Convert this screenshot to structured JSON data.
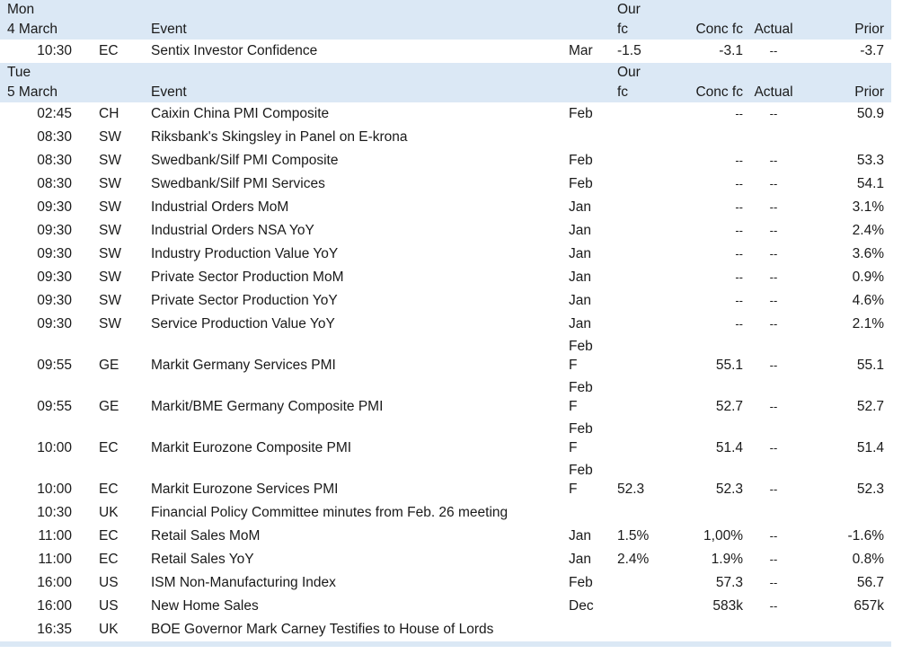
{
  "days": [
    {
      "weekday": "Mon",
      "date": "4 March",
      "headers": {
        "event": "Event",
        "our_fc_1": "Our",
        "our_fc_2": "fc",
        "conc_fc": "Conc fc",
        "actual": "Actual",
        "prior": "Prior"
      },
      "rows": [
        {
          "time": "10:30",
          "country": "EC",
          "event": "Sentix Investor Confidence",
          "period": "Mar",
          "period2": "",
          "our_fc": "-1.5",
          "conc_fc": "-3.1",
          "actual": "--",
          "prior": "-3.7"
        }
      ]
    },
    {
      "weekday": "Tue",
      "date": "5 March",
      "headers": {
        "event": "Event",
        "our_fc_1": "Our",
        "our_fc_2": "fc",
        "conc_fc": "Conc fc",
        "actual": "Actual",
        "prior": "Prior"
      },
      "rows": [
        {
          "time": "02:45",
          "country": "CH",
          "event": "Caixin China PMI Composite",
          "period": "Feb",
          "period2": "",
          "our_fc": "",
          "conc_fc": "--",
          "actual": "--",
          "prior": "50.9"
        },
        {
          "time": "08:30",
          "country": "SW",
          "event": "Riksbank's Skingsley in Panel on E-krona",
          "period": "",
          "period2": "",
          "our_fc": "",
          "conc_fc": "",
          "actual": "",
          "prior": ""
        },
        {
          "time": "08:30",
          "country": "SW",
          "event": "Swedbank/Silf PMI Composite",
          "period": "Feb",
          "period2": "",
          "our_fc": "",
          "conc_fc": "--",
          "actual": "--",
          "prior": "53.3"
        },
        {
          "time": "08:30",
          "country": "SW",
          "event": "Swedbank/Silf PMI Services",
          "period": "Feb",
          "period2": "",
          "our_fc": "",
          "conc_fc": "--",
          "actual": "--",
          "prior": "54.1"
        },
        {
          "time": "09:30",
          "country": "SW",
          "event": "Industrial Orders MoM",
          "period": "Jan",
          "period2": "",
          "our_fc": "",
          "conc_fc": "--",
          "actual": "--",
          "prior": "3.1%"
        },
        {
          "time": "09:30",
          "country": "SW",
          "event": "Industrial Orders NSA YoY",
          "period": "Jan",
          "period2": "",
          "our_fc": "",
          "conc_fc": "--",
          "actual": "--",
          "prior": "2.4%"
        },
        {
          "time": "09:30",
          "country": "SW",
          "event": "Industry Production Value YoY",
          "period": "Jan",
          "period2": "",
          "our_fc": "",
          "conc_fc": "--",
          "actual": "--",
          "prior": "3.6%"
        },
        {
          "time": "09:30",
          "country": "SW",
          "event": "Private Sector Production MoM",
          "period": "Jan",
          "period2": "",
          "our_fc": "",
          "conc_fc": "--",
          "actual": "--",
          "prior": "0.9%"
        },
        {
          "time": "09:30",
          "country": "SW",
          "event": "Private Sector Production YoY",
          "period": "Jan",
          "period2": "",
          "our_fc": "",
          "conc_fc": "--",
          "actual": "--",
          "prior": "4.6%"
        },
        {
          "time": "09:30",
          "country": "SW",
          "event": "Service Production Value YoY",
          "period": "Jan",
          "period2": "",
          "our_fc": "",
          "conc_fc": "--",
          "actual": "--",
          "prior": "2.1%"
        },
        {
          "time": "09:55",
          "country": "GE",
          "event": "Markit Germany Services PMI",
          "period": "Feb",
          "period2": "F",
          "our_fc": "",
          "conc_fc": "55.1",
          "actual": "--",
          "prior": "55.1"
        },
        {
          "time": "09:55",
          "country": "GE",
          "event": "Markit/BME Germany Composite PMI",
          "period": "Feb",
          "period2": "F",
          "our_fc": "",
          "conc_fc": "52.7",
          "actual": "--",
          "prior": "52.7"
        },
        {
          "time": "10:00",
          "country": "EC",
          "event": "Markit Eurozone Composite PMI",
          "period": "Feb",
          "period2": "F",
          "our_fc": "",
          "conc_fc": "51.4",
          "actual": "--",
          "prior": "51.4"
        },
        {
          "time": "10:00",
          "country": "EC",
          "event": "Markit Eurozone Services PMI",
          "period": "Feb",
          "period2": "F",
          "our_fc": "52.3",
          "conc_fc": "52.3",
          "actual": "--",
          "prior": "52.3"
        },
        {
          "time": "10:30",
          "country": "UK",
          "event": "Financial Policy Committee minutes from Feb. 26 meeting",
          "period": "",
          "period2": "",
          "our_fc": "",
          "conc_fc": "",
          "actual": "",
          "prior": ""
        },
        {
          "time": "11:00",
          "country": "EC",
          "event": "Retail Sales MoM",
          "period": "Jan",
          "period2": "",
          "our_fc": "1.5%",
          "conc_fc": "1,00%",
          "actual": "--",
          "prior": "-1.6%"
        },
        {
          "time": "11:00",
          "country": "EC",
          "event": "Retail Sales YoY",
          "period": "Jan",
          "period2": "",
          "our_fc": "2.4%",
          "conc_fc": "1.9%",
          "actual": "--",
          "prior": "0.8%"
        },
        {
          "time": "16:00",
          "country": "US",
          "event": "ISM Non-Manufacturing Index",
          "period": "Feb",
          "period2": "",
          "our_fc": "",
          "conc_fc": "57.3",
          "actual": "--",
          "prior": "56.7"
        },
        {
          "time": "16:00",
          "country": "US",
          "event": "New Home Sales",
          "period": "Dec",
          "period2": "",
          "our_fc": "",
          "conc_fc": "583k",
          "actual": "--",
          "prior": "657k"
        },
        {
          "time": "16:35",
          "country": "UK",
          "event": "BOE Governor Mark Carney Testifies to House of Lords",
          "period": "",
          "period2": "",
          "our_fc": "",
          "conc_fc": "",
          "actual": "",
          "prior": ""
        }
      ]
    }
  ]
}
